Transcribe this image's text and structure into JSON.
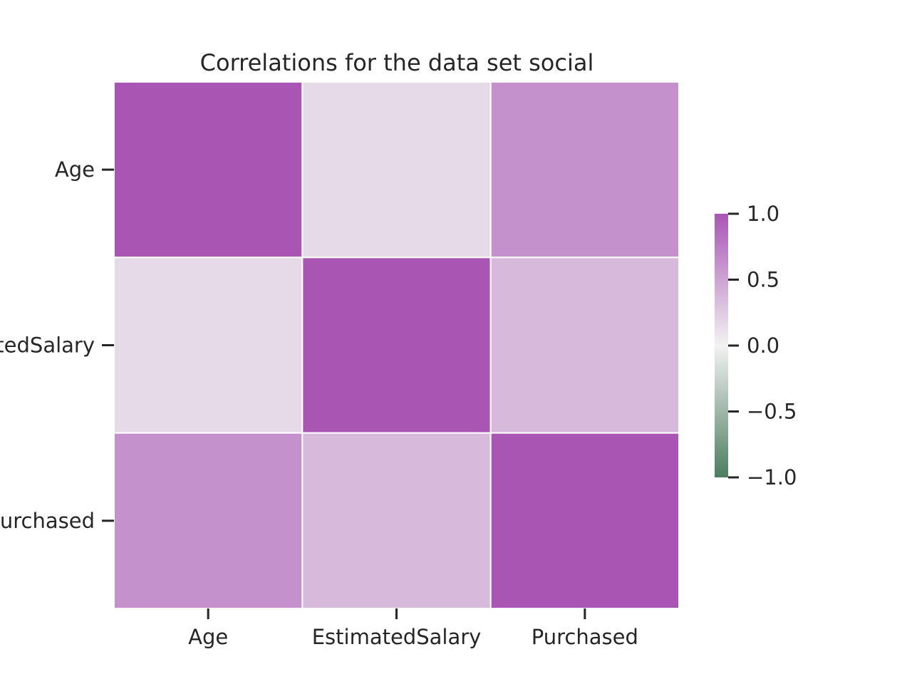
{
  "chart_data": {
    "type": "heatmap",
    "title": "Correlations for the data set social",
    "x_labels": [
      "Age",
      "EstimatedSalary",
      "Purchased"
    ],
    "y_labels": [
      "Age",
      "EstimatedSalary",
      "Purchased"
    ],
    "values": [
      [
        1.0,
        0.16,
        0.62
      ],
      [
        0.16,
        1.0,
        0.36
      ],
      [
        0.62,
        0.36,
        1.0
      ]
    ],
    "colorbar": {
      "min": -1.0,
      "max": 1.0,
      "ticks": [
        1.0,
        0.5,
        0.0,
        -0.5,
        -1.0
      ],
      "tick_labels": [
        "1.0",
        "0.5",
        "0.0",
        "−0.5",
        "−1.0"
      ],
      "colors": {
        "low": "#4a7d60",
        "mid": "#f2f2f2",
        "high": "#a855b4"
      }
    },
    "cell_border_color": "#ffffff",
    "grid": false
  }
}
